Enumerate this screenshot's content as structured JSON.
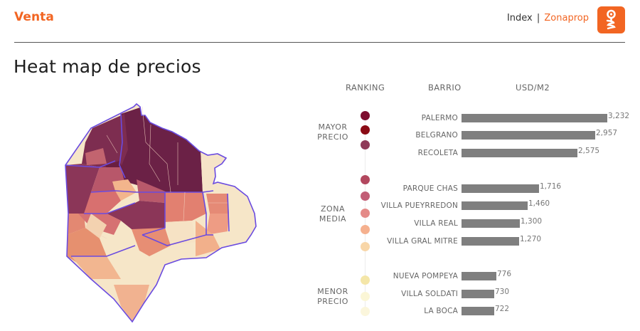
{
  "header": {
    "title": "Venta",
    "brand_prefix": "Index",
    "brand_separator": "|",
    "brand_name": "Zonaprop",
    "logo_icon": "zonaprop-key-logo",
    "accent_color": "#f26522"
  },
  "page_title": "Heat map de precios",
  "columns": {
    "ranking": "RANKING",
    "barrio": "BARRIO",
    "usd": "USD/M2"
  },
  "groups": [
    {
      "line1": "MAYOR",
      "line2": "PRECIO"
    },
    {
      "line1": "ZONA",
      "line2": "MEDIA"
    },
    {
      "line1": "MENOR",
      "line2": "PRECIO"
    }
  ],
  "ranking_dots": [
    {
      "color": "#7d0c2e"
    },
    {
      "color": "#8a0a14"
    },
    {
      "color": "#8e3a58"
    },
    {
      "color": "#b2475e"
    },
    {
      "color": "#c25d76"
    },
    {
      "color": "#e48a88"
    },
    {
      "color": "#f5b08e"
    },
    {
      "color": "#f8d6a8"
    },
    {
      "color": "#f4e6a8"
    },
    {
      "color": "#fbf6d6"
    },
    {
      "color": "#fbf6dc"
    }
  ],
  "chart_data": {
    "type": "bar",
    "orientation": "horizontal",
    "title": "Heat map de precios",
    "xlabel": "USD/M2",
    "ylabel": "BARRIO",
    "categories": [
      "PALERMO",
      "BELGRANO",
      "RECOLETA",
      "PARQUE CHAS",
      "VILLA PUEYRREDON",
      "VILLA REAL",
      "VILLA GRAL MITRE",
      "NUEVA POMPEYA",
      "VILLA SOLDATI",
      "LA BOCA"
    ],
    "values": [
      3232,
      2957,
      2575,
      1716,
      1460,
      1300,
      1270,
      776,
      730,
      722
    ],
    "value_labels": [
      "3,232",
      "2,957",
      "2,575",
      "1,716",
      "1,460",
      "1,300",
      "1,270",
      "776",
      "730",
      "722"
    ],
    "groups": [
      {
        "name": "MAYOR PRECIO",
        "categories": [
          "PALERMO",
          "BELGRANO",
          "RECOLETA"
        ]
      },
      {
        "name": "ZONA MEDIA",
        "categories": [
          "PARQUE CHAS",
          "VILLA PUEYRREDON",
          "VILLA REAL",
          "VILLA GRAL MITRE"
        ]
      },
      {
        "name": "MENOR PRECIO",
        "categories": [
          "NUEVA POMPEYA",
          "VILLA SOLDATI",
          "LA BOCA"
        ]
      }
    ],
    "bar_color": "#7f7f7f",
    "grid": false,
    "legend": "none",
    "map": {
      "type": "heatmap",
      "region": "Buenos Aires city barrios",
      "color_scale": [
        "#6b2146",
        "#8e3a5a",
        "#b85a6a",
        "#e0836f",
        "#f2a98a",
        "#f6e4c8"
      ],
      "border_color": "#6a4be0"
    }
  }
}
